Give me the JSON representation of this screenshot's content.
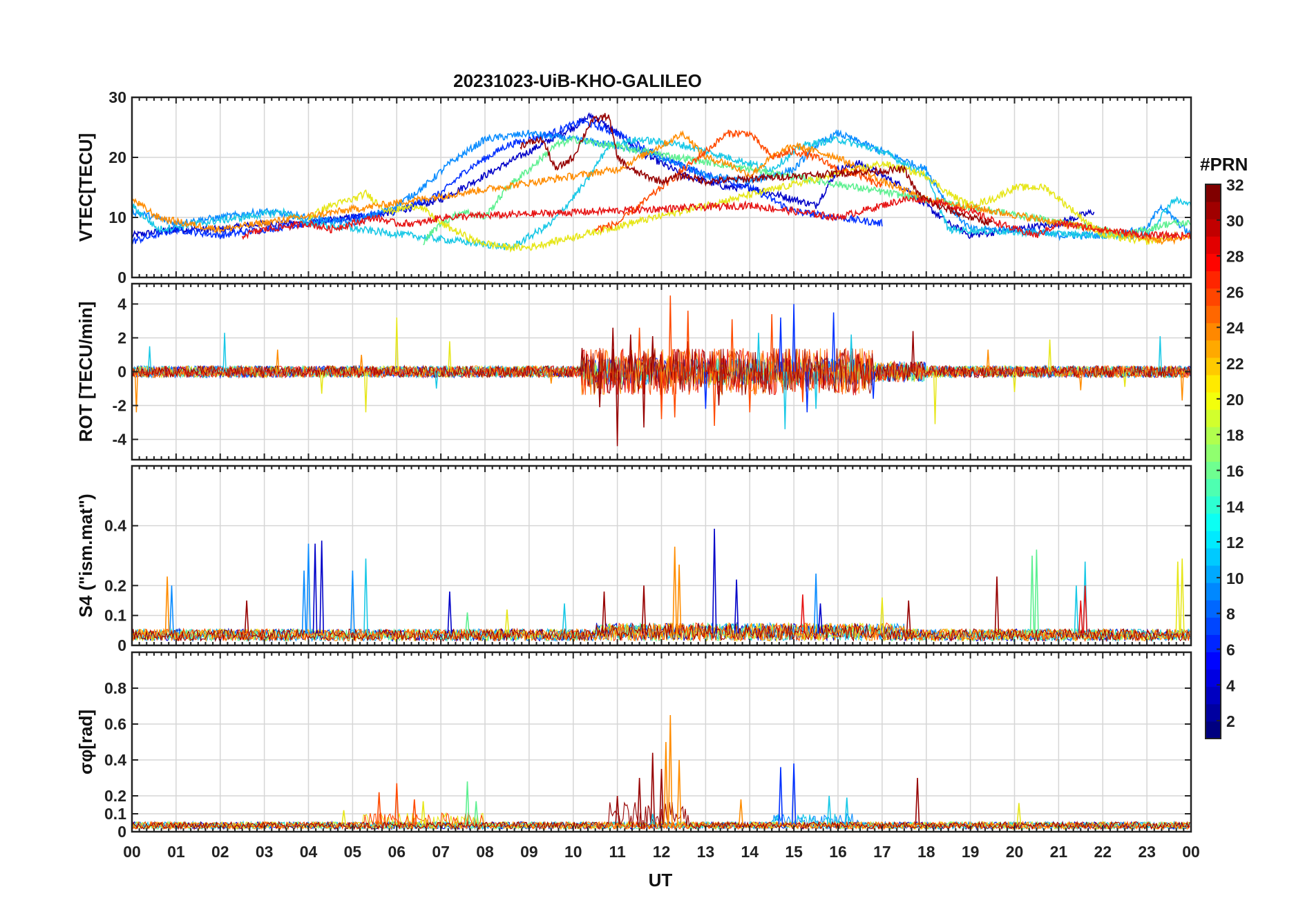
{
  "chart_data": {
    "title": "20231023-UiB-KHO-GALILEO",
    "xlabel": "UT",
    "x_tick_labels": [
      "00",
      "01",
      "02",
      "03",
      "04",
      "05",
      "06",
      "07",
      "08",
      "09",
      "10",
      "11",
      "12",
      "13",
      "14",
      "15",
      "16",
      "17",
      "18",
      "19",
      "20",
      "21",
      "22",
      "23",
      "00"
    ],
    "xlim": [
      0,
      24
    ],
    "grid": true,
    "panels": [
      {
        "type": "line",
        "ylabel": "VTEC[TECU]",
        "ylim": [
          0,
          30
        ],
        "yticks": [
          0,
          10,
          20,
          30
        ],
        "series": [
          {
            "prn": 2,
            "color": "#0000c8",
            "x": [
              0,
              1,
              2,
              3,
              4,
              5,
              6,
              7,
              8,
              9,
              10,
              10.4,
              11,
              11.5,
              12,
              12.5,
              13,
              13.5,
              14,
              14.5,
              15,
              15.5,
              16,
              16.5,
              17,
              17.5,
              18,
              18.5,
              19,
              20,
              21,
              21.8
            ],
            "y": [
              7,
              8,
              8,
              9,
              9,
              10,
              11,
              13,
              17,
              21,
              25,
              27,
              24,
              21,
              19,
              17,
              16,
              15,
              15,
              14,
              13,
              12,
              18,
              19,
              17,
              15,
              12,
              9,
              7,
              8,
              9,
              11
            ]
          },
          {
            "prn": 4,
            "color": "#0030ff",
            "x": [
              0,
              1,
              2,
              3,
              4,
              5,
              6,
              7,
              7.6,
              8.5,
              9.5,
              10.2,
              11,
              12,
              13,
              14,
              14.5,
              15,
              16,
              17
            ],
            "y": [
              6,
              8,
              7,
              8,
              9,
              10,
              11,
              14,
              18,
              22,
              24,
              26,
              24,
              20,
              17,
              15,
              13,
              11,
              10,
              9
            ]
          },
          {
            "prn": 8,
            "color": "#0a8cff",
            "x": [
              0,
              1,
              2,
              3,
              4,
              5,
              6,
              6.6,
              7.2,
              8,
              9,
              10,
              11,
              12,
              13,
              14,
              15,
              15.5,
              16,
              17,
              18,
              18.5,
              19,
              20,
              21,
              22,
              23,
              23.3,
              24
            ],
            "y": [
              11,
              9,
              10,
              11,
              10,
              9,
              12,
              15,
              19,
              23,
              24,
              23,
              22,
              20,
              17,
              16,
              18,
              22,
              24,
              21,
              18,
              12,
              8,
              8,
              7,
              7,
              8,
              12,
              7
            ]
          },
          {
            "prn": 11,
            "color": "#18c8e6",
            "x": [
              0,
              0.6,
              1.5,
              2.5,
              3.4,
              4,
              8.6,
              9.5,
              10.3,
              10.8,
              11.5,
              12.5,
              13.5,
              14.5,
              15.2,
              16,
              17,
              18,
              18.5,
              22,
              23,
              23.6,
              24
            ],
            "y": [
              12,
              8,
              9,
              10,
              11,
              9,
              5,
              9,
              16,
              22,
              23,
              22,
              20,
              18,
              22,
              23,
              21,
              17,
              8,
              7,
              7,
              13,
              12
            ]
          },
          {
            "prn": 16,
            "color": "#5cf090",
            "x": [
              6.6,
              7,
              7.5,
              8,
              8.5,
              9,
              9.6,
              10,
              22,
              22.5,
              23,
              23.5,
              24
            ],
            "y": [
              6,
              9,
              11,
              10,
              15,
              18,
              22,
              23,
              8,
              7,
              8,
              9,
              9
            ]
          },
          {
            "prn": 20,
            "color": "#e6e618",
            "x": [
              4,
              4.5,
              5,
              5.3,
              5.8,
              6.5,
              7,
              7.8,
              8.5,
              9,
              17,
              17.5,
              18,
              18.5,
              19,
              19.5,
              20,
              20.7,
              22,
              23,
              23.7
            ],
            "y": [
              10,
              12,
              13,
              14,
              11,
              12,
              9,
              6,
              5,
              5,
              19,
              18,
              17,
              14,
              12,
              13,
              15,
              15,
              7,
              6,
              7
            ]
          },
          {
            "prn": 24,
            "color": "#ff8c00",
            "x": [
              0,
              0.6,
              1.2,
              2,
              11,
              11.5,
              12,
              12.5,
              13,
              13.5,
              14,
              14.5,
              15,
              15.5,
              16,
              16.5,
              17,
              18,
              23.4,
              24
            ],
            "y": [
              13,
              10,
              9,
              8,
              18,
              20,
              22,
              24,
              20,
              19,
              17,
              20,
              22,
              21,
              20,
              18,
              16,
              13,
              6,
              7
            ]
          },
          {
            "prn": 26,
            "color": "#ff4a00",
            "x": [
              10.5,
              11,
              11.5,
              12,
              12.5,
              13,
              13.5,
              14,
              14.5,
              15,
              15.5,
              16,
              16.5,
              17
            ],
            "y": [
              8,
              9,
              12,
              15,
              18,
              21,
              24,
              24,
              20,
              21,
              20,
              18,
              17,
              15
            ]
          },
          {
            "prn": 28,
            "color": "#e61414",
            "x": [
              2.5,
              3,
              4,
              4.5,
              5,
              5.5,
              6,
              6.5,
              7,
              14,
              15,
              16,
              16.5,
              17,
              17.5,
              18,
              19,
              20,
              20.5,
              21,
              22,
              23,
              24
            ],
            "y": [
              7,
              8,
              9,
              8,
              9,
              10,
              9,
              9,
              10,
              12,
              11,
              10,
              11,
              12,
              13,
              13,
              11,
              8,
              7,
              9,
              8,
              7,
              7
            ]
          },
          {
            "prn": 31,
            "color": "#960000",
            "x": [
              8.8,
              9.3,
              9.6,
              10,
              10.4,
              10.8,
              11,
              11.3,
              11.6,
              12,
              12.5,
              13,
              17.5,
              17.8,
              18.2,
              18.6,
              19,
              19.5
            ],
            "y": [
              22,
              23,
              18,
              20,
              26,
              27,
              20,
              18,
              17,
              16,
              17,
              16,
              18,
              14,
              12,
              11,
              10,
              9
            ]
          }
        ]
      },
      {
        "type": "line",
        "ylabel": "ROT [TECU/min]",
        "ylim": [
          -5.2,
          5.2
        ],
        "yticks": [
          -4,
          -2,
          0,
          2,
          4
        ],
        "series": [
          {
            "prn": 31,
            "color": "#960000",
            "x": [
              10.2,
              10.6,
              10.9,
              11.0,
              11.3,
              11.6,
              11.8,
              12.0,
              12.6,
              13.3,
              17.7
            ],
            "y": [
              1.4,
              -2.1,
              2.6,
              -4.4,
              2.2,
              -3.3,
              2.1,
              -1.7,
              1.8,
              -2.0,
              2.4
            ]
          },
          {
            "prn": 26,
            "color": "#ff4a00",
            "x": [
              11.5,
              12.0,
              12.2,
              12.3,
              12.6,
              13.2,
              13.6,
              14.0,
              14.5,
              15.2
            ],
            "y": [
              2.6,
              -2.8,
              4.5,
              -2.7,
              3.6,
              -3.2,
              3.1,
              -2.4,
              3.4,
              -1.8
            ]
          },
          {
            "prn": 4,
            "color": "#0030ff",
            "x": [
              13.0,
              14.7,
              15.0,
              15.3,
              15.9,
              16.8
            ],
            "y": [
              -2.2,
              3.2,
              4.0,
              -2.4,
              3.5,
              -1.6
            ]
          },
          {
            "prn": 11,
            "color": "#18c8e6",
            "x": [
              0.4,
              2.1,
              6.9,
              14.2,
              14.8,
              15.5,
              16.3,
              23.3
            ],
            "y": [
              1.5,
              2.3,
              -1.0,
              2.3,
              -3.4,
              -2.2,
              2.2,
              2.1
            ]
          },
          {
            "prn": 20,
            "color": "#e6e618",
            "x": [
              4.3,
              5.3,
              6.0,
              7.2,
              18.2,
              20.0,
              20.8,
              22.5
            ],
            "y": [
              -1.3,
              -2.4,
              3.2,
              1.8,
              -3.1,
              -1.2,
              1.9,
              -0.9
            ]
          },
          {
            "prn": 24,
            "color": "#ff8c00",
            "x": [
              0.1,
              3.3,
              5.2,
              9.5,
              19.4,
              21.5,
              23.8
            ],
            "y": [
              -2.4,
              1.3,
              1.0,
              -0.7,
              1.3,
              -1.1,
              -1.7
            ]
          }
        ]
      },
      {
        "type": "line",
        "ylabel": "S4 (\"ism.mat\")",
        "ylim": [
          0,
          0.6
        ],
        "yticks": [
          0,
          0.1,
          0.2,
          0.4
        ],
        "series": [
          {
            "prn": 2,
            "color": "#0000c8",
            "x": [
              4.15,
              4.3,
              7.2,
              13.2,
              13.7,
              15.6
            ],
            "y": [
              0.34,
              0.35,
              0.18,
              0.39,
              0.22,
              0.14
            ]
          },
          {
            "prn": 8,
            "color": "#0a8cff",
            "x": [
              3.9,
              4.0,
              5.0,
              0.9,
              15.5
            ],
            "y": [
              0.25,
              0.34,
              0.25,
              0.2,
              0.24
            ]
          },
          {
            "prn": 11,
            "color": "#18c8e6",
            "x": [
              5.3,
              9.8,
              21.4,
              21.6
            ],
            "y": [
              0.29,
              0.14,
              0.2,
              0.28
            ]
          },
          {
            "prn": 16,
            "color": "#5cf090",
            "x": [
              20.4,
              20.5,
              7.6
            ],
            "y": [
              0.3,
              0.32,
              0.11
            ]
          },
          {
            "prn": 20,
            "color": "#e6e618",
            "x": [
              23.7,
              23.8,
              8.5,
              17.0
            ],
            "y": [
              0.28,
              0.29,
              0.12,
              0.16
            ]
          },
          {
            "prn": 24,
            "color": "#ff8c00",
            "x": [
              0.8,
              12.3,
              12.4
            ],
            "y": [
              0.23,
              0.33,
              0.27
            ]
          },
          {
            "prn": 28,
            "color": "#e61414",
            "x": [
              21.5,
              21.6,
              15.2
            ],
            "y": [
              0.15,
              0.2,
              0.17
            ]
          },
          {
            "prn": 31,
            "color": "#960000",
            "x": [
              2.6,
              10.7,
              11.6,
              19.6,
              17.6
            ],
            "y": [
              0.15,
              0.18,
              0.2,
              0.23,
              0.15
            ]
          }
        ]
      },
      {
        "type": "line",
        "ylabel": "σφ[rad]",
        "ylim": [
          0,
          1.0
        ],
        "yticks": [
          0,
          0.1,
          0.2,
          0.4,
          0.6,
          0.8
        ],
        "series": [
          {
            "prn": 31,
            "color": "#960000",
            "x": [
              11.0,
              11.5,
              11.8,
              12.0,
              17.8
            ],
            "y": [
              0.2,
              0.3,
              0.44,
              0.35,
              0.3
            ]
          },
          {
            "prn": 24,
            "color": "#ff8c00",
            "x": [
              12.1,
              12.2,
              12.4,
              13.8
            ],
            "y": [
              0.5,
              0.65,
              0.4,
              0.18
            ]
          },
          {
            "prn": 26,
            "color": "#ff4a00",
            "x": [
              5.6,
              6.0,
              6.4
            ],
            "y": [
              0.22,
              0.27,
              0.18
            ]
          },
          {
            "prn": 4,
            "color": "#0030ff",
            "x": [
              14.7,
              15.0
            ],
            "y": [
              0.36,
              0.38
            ]
          },
          {
            "prn": 11,
            "color": "#18c8e6",
            "x": [
              15.8,
              16.2,
              11.8
            ],
            "y": [
              0.2,
              0.19,
              0.1
            ]
          },
          {
            "prn": 16,
            "color": "#5cf090",
            "x": [
              7.6,
              7.8
            ],
            "y": [
              0.28,
              0.17
            ]
          },
          {
            "prn": 20,
            "color": "#e6e618",
            "x": [
              4.8,
              6.6,
              20.1
            ],
            "y": [
              0.12,
              0.17,
              0.16
            ]
          }
        ]
      }
    ],
    "colorbar": {
      "label": "#PRN",
      "ticks": [
        2,
        4,
        6,
        8,
        10,
        12,
        14,
        16,
        18,
        20,
        22,
        24,
        26,
        28,
        30,
        32
      ],
      "range": [
        1,
        32
      ],
      "colormap": "jet"
    }
  }
}
